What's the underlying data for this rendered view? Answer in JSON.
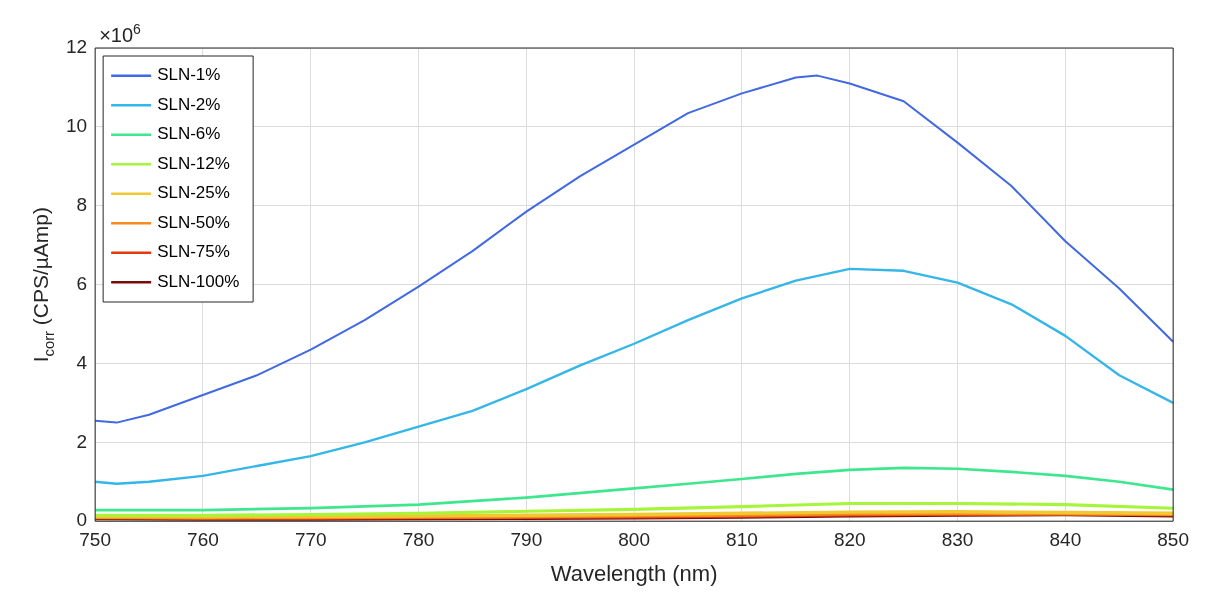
{
  "chart_data": {
    "type": "line",
    "xlabel": "Wavelength (nm)",
    "ylabel": "I$_{corr}$ (CPS/µAmp)",
    "annotations": [
      "×10$^{6}$"
    ],
    "xlim": [
      750,
      850
    ],
    "ylim": [
      0,
      12
    ],
    "xticks": [
      750,
      760,
      770,
      780,
      790,
      800,
      810,
      820,
      830,
      840,
      850
    ],
    "yticks": [
      0,
      2,
      4,
      6,
      8,
      10,
      12
    ],
    "grid": true,
    "legend": "top left",
    "marker": "none",
    "line_style": "solid",
    "series": [
      {
        "name": "SLN-1%",
        "color": "#4169e1",
        "x": [
          750,
          752,
          755,
          760,
          765,
          770,
          775,
          780,
          785,
          790,
          795,
          800,
          805,
          810,
          815,
          817,
          820,
          825,
          830,
          835,
          840,
          845,
          850
        ],
        "values": [
          2.55,
          2.5,
          2.7,
          3.2,
          3.7,
          4.35,
          5.1,
          5.95,
          6.85,
          7.85,
          8.75,
          9.55,
          10.35,
          10.85,
          11.25,
          11.3,
          11.1,
          10.65,
          9.6,
          8.5,
          7.1,
          5.9,
          4.55
        ]
      },
      {
        "name": "SLN-2%",
        "color": "#35b6e8",
        "x": [
          750,
          752,
          755,
          760,
          765,
          770,
          775,
          780,
          785,
          790,
          795,
          800,
          805,
          810,
          815,
          820,
          825,
          830,
          835,
          840,
          845,
          850
        ],
        "values": [
          1.0,
          0.95,
          1.0,
          1.15,
          1.4,
          1.65,
          2.0,
          2.4,
          2.8,
          3.35,
          3.95,
          4.5,
          5.1,
          5.65,
          6.1,
          6.4,
          6.35,
          6.05,
          5.5,
          4.7,
          3.7,
          3.0
        ]
      },
      {
        "name": "SLN-6%",
        "color": "#3ee68e",
        "x": [
          750,
          760,
          770,
          780,
          790,
          800,
          805,
          810,
          815,
          820,
          825,
          830,
          835,
          840,
          845,
          850
        ],
        "values": [
          0.28,
          0.28,
          0.33,
          0.42,
          0.6,
          0.83,
          0.95,
          1.07,
          1.2,
          1.3,
          1.35,
          1.33,
          1.25,
          1.15,
          1.0,
          0.8
        ]
      },
      {
        "name": "SLN-12%",
        "color": "#a6f53a",
        "x": [
          750,
          760,
          770,
          780,
          790,
          800,
          810,
          820,
          830,
          840,
          850
        ],
        "values": [
          0.15,
          0.15,
          0.17,
          0.2,
          0.25,
          0.3,
          0.37,
          0.45,
          0.45,
          0.42,
          0.33
        ]
      },
      {
        "name": "SLN-25%",
        "color": "#f0c830",
        "x": [
          750,
          760,
          770,
          780,
          790,
          800,
          810,
          820,
          830,
          840,
          850
        ],
        "values": [
          0.12,
          0.11,
          0.12,
          0.13,
          0.15,
          0.17,
          0.2,
          0.23,
          0.24,
          0.22,
          0.2
        ]
      },
      {
        "name": "SLN-50%",
        "color": "#f7891e",
        "x": [
          750,
          760,
          770,
          780,
          790,
          800,
          810,
          820,
          830,
          840,
          850
        ],
        "values": [
          0.1,
          0.09,
          0.1,
          0.11,
          0.12,
          0.14,
          0.16,
          0.19,
          0.2,
          0.19,
          0.18
        ]
      },
      {
        "name": "SLN-75%",
        "color": "#e03a10",
        "x": [
          750,
          760,
          770,
          780,
          790,
          800,
          810,
          820,
          830,
          840,
          850
        ],
        "values": [
          0.12,
          0.09,
          0.09,
          0.1,
          0.11,
          0.12,
          0.14,
          0.17,
          0.19,
          0.2,
          0.17
        ]
      },
      {
        "name": "SLN-100%",
        "color": "#7a0b0b",
        "x": [
          750,
          760,
          770,
          780,
          790,
          800,
          810,
          820,
          830,
          840,
          850
        ],
        "values": [
          0.08,
          0.07,
          0.07,
          0.08,
          0.09,
          0.1,
          0.12,
          0.15,
          0.17,
          0.18,
          0.15
        ]
      }
    ]
  }
}
